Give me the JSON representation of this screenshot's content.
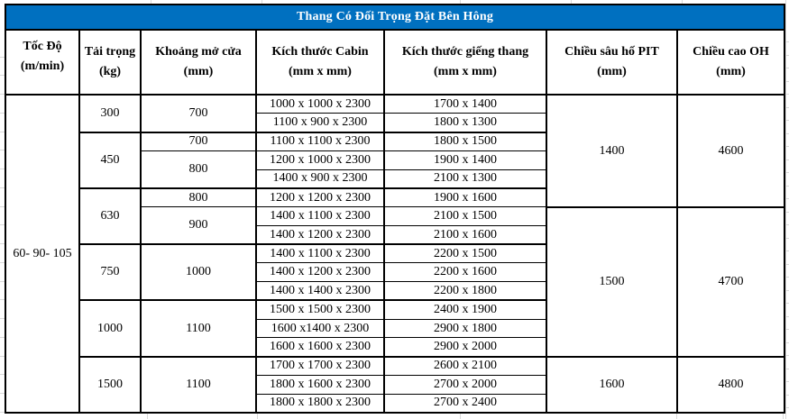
{
  "title": "Thang Có Đối Trọng Đặt Bên Hông",
  "colors": {
    "title_bg": "#0070C0",
    "title_text": "#FFFFFF",
    "border": "#000000",
    "gridline": "#DADADA"
  },
  "headers": [
    {
      "line1": "Tốc Độ",
      "line2": "(m/min)"
    },
    {
      "line1": "Tải trọng",
      "line2": "(kg)"
    },
    {
      "line1": "Khoảng mở cửa",
      "line2": "(mm)"
    },
    {
      "line1": "Kích thước Cabin",
      "line2": "(mm x mm)"
    },
    {
      "line1": "Kích thước giếng thang",
      "line2": "(mm x mm)"
    },
    {
      "line1": "Chiều sâu hố PIT",
      "line2": "(mm)"
    },
    {
      "line1": "Chiều cao OH",
      "line2": "(mm)"
    }
  ],
  "speed": "60- 90- 105",
  "rows": [
    {
      "load": "300",
      "door": "700",
      "cabin": "1000 x 1000 x 2300",
      "shaft": "1700 x 1400",
      "pit": "1400",
      "oh": "4600"
    },
    {
      "cabin": "1100 x 900 x 2300",
      "shaft": "1800 x 1300"
    },
    {
      "load": "450",
      "door": "700",
      "cabin": "1100 x 1100 x 2300",
      "shaft": "1800 x 1500"
    },
    {
      "door": "800",
      "cabin": "1200 x 1000 x 2300",
      "shaft": "1900 x 1400"
    },
    {
      "cabin": "1400 x 900 x 2300",
      "shaft": "2100 x 1300"
    },
    {
      "load": "630",
      "door": "800",
      "cabin": "1200 x 1200 x 2300",
      "shaft": "1900 x 1600"
    },
    {
      "door": "900",
      "cabin": "1400 x 1100 x 2300",
      "shaft": "2100 x 1500",
      "pit": "1500",
      "oh": "4700"
    },
    {
      "cabin": "1400 x 1200 x 2300",
      "shaft": "2100 x 1600"
    },
    {
      "load": "750",
      "door": "1000",
      "cabin": "1400 x 1100 x 2300",
      "shaft": "2200 x 1500"
    },
    {
      "cabin": "1400 x 1200 x 2300",
      "shaft": "2200 x 1600"
    },
    {
      "cabin": "1400 x 1400 x 2300",
      "shaft": "2200 x 1800"
    },
    {
      "load": "1000",
      "door": "1100",
      "cabin": "1500 x 1500 x 2300",
      "shaft": "2400 x 1900"
    },
    {
      "cabin": "1600 x1400 x 2300",
      "shaft": "2900 x 1800"
    },
    {
      "cabin": "1600 x 1600 x 2300",
      "shaft": "2900 x 2000"
    },
    {
      "load": "1500",
      "door": "1100",
      "cabin": "1700 x 1700 x 2300",
      "shaft": "2600 x 2100",
      "pit": "1600",
      "oh": "4800"
    },
    {
      "cabin": "1800 x 1600 x 2300",
      "shaft": "2700 x 2000"
    },
    {
      "cabin": "1800 x 1800 x 2300",
      "shaft": "2700 x 2400"
    }
  ]
}
